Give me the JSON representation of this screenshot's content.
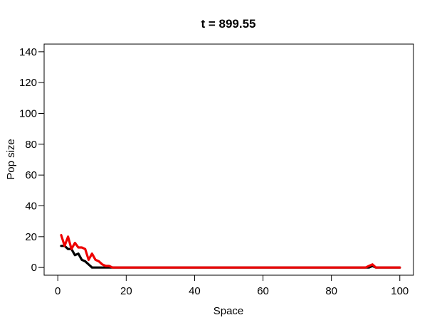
{
  "chart_data": {
    "type": "line",
    "title": "t = 899.55",
    "xlabel": "Space",
    "ylabel": "Pop size",
    "xlim": [
      -4,
      104
    ],
    "ylim": [
      -5,
      145
    ],
    "xticks": [
      0,
      20,
      40,
      60,
      80,
      100
    ],
    "yticks": [
      0,
      20,
      40,
      60,
      80,
      100,
      120,
      140
    ],
    "grid": false,
    "series": [
      {
        "color": "#000000",
        "x": [
          1,
          2,
          3,
          4,
          5,
          6,
          7,
          8,
          9,
          10,
          11,
          12,
          13,
          14,
          15,
          16,
          17,
          18,
          19,
          20,
          90,
          91,
          92,
          93,
          94,
          95,
          96,
          97,
          98,
          99,
          100
        ],
        "y": [
          14,
          14,
          12,
          12,
          8,
          9,
          5,
          4,
          2,
          0,
          0,
          0,
          0,
          0,
          0,
          0,
          0,
          0,
          0,
          0,
          0,
          0,
          1,
          0,
          0,
          0,
          0,
          0,
          0,
          0,
          0
        ]
      },
      {
        "color": "#ee0000",
        "x": [
          1,
          2,
          3,
          4,
          5,
          6,
          7,
          8,
          9,
          10,
          11,
          12,
          13,
          14,
          15,
          16,
          17,
          18,
          19,
          20,
          90,
          91,
          92,
          93,
          94,
          95,
          96,
          97,
          98,
          99,
          100
        ],
        "y": [
          21,
          14,
          20,
          12,
          16,
          13,
          13,
          12,
          5,
          9,
          5,
          4,
          2,
          1,
          1,
          0,
          0,
          0,
          0,
          0,
          0,
          1,
          2,
          0,
          0,
          0,
          0,
          0,
          0,
          0,
          0
        ]
      }
    ]
  }
}
